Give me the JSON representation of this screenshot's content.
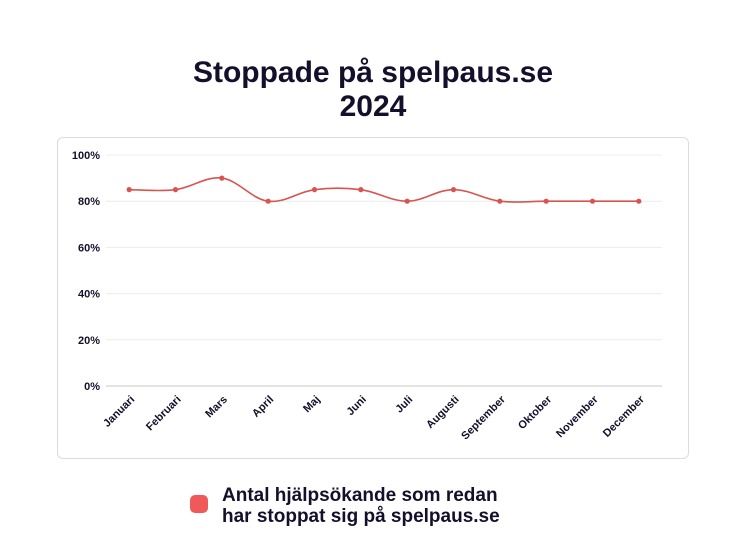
{
  "title_lines": [
    "Stoppade på spelpaus.se",
    "2024"
  ],
  "chart_data": {
    "type": "line",
    "title": "Stoppade på spelpaus.se 2024",
    "categories": [
      "Januari",
      "Februari",
      "Mars",
      "April",
      "Maj",
      "Juni",
      "Juli",
      "Augusti",
      "September",
      "Oktober",
      "November",
      "December"
    ],
    "series": [
      {
        "name": "Antal hjälpsökande som redan har stoppat sig på spelpaus.se",
        "values": [
          85,
          85,
          90,
          80,
          85,
          85,
          80,
          85,
          80,
          80,
          80,
          80
        ],
        "color": "#d9534f"
      }
    ],
    "yticks": [
      "0%",
      "20%",
      "40%",
      "60%",
      "80%",
      "100%"
    ],
    "ylim": [
      0,
      100
    ],
    "grid": true,
    "legend_position": "bottom"
  },
  "legend": {
    "lines": [
      "Antal hjälpsökande som redan",
      "har stoppat sig på spelpaus.se"
    ],
    "swatch_color": "#f0595a"
  }
}
